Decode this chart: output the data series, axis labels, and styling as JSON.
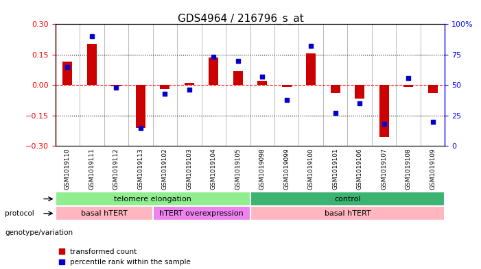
{
  "title": "GDS4964 / 216796_s_at",
  "samples": [
    "GSM1019110",
    "GSM1019111",
    "GSM1019112",
    "GSM1019113",
    "GSM1019102",
    "GSM1019103",
    "GSM1019104",
    "GSM1019105",
    "GSM1019098",
    "GSM1019099",
    "GSM1019100",
    "GSM1019101",
    "GSM1019106",
    "GSM1019107",
    "GSM1019108",
    "GSM1019109"
  ],
  "red_values": [
    0.115,
    0.205,
    -0.005,
    -0.21,
    -0.02,
    0.01,
    0.135,
    0.07,
    0.02,
    -0.01,
    0.155,
    -0.04,
    -0.065,
    -0.255,
    -0.01,
    -0.04
  ],
  "blue_values": [
    65,
    90,
    48,
    15,
    43,
    46,
    73,
    70,
    57,
    38,
    82,
    27,
    35,
    18,
    56,
    20
  ],
  "protocol_groups": [
    {
      "label": "telomere elongation",
      "start": 0,
      "end": 8,
      "color": "#90EE90"
    },
    {
      "label": "control",
      "start": 8,
      "end": 16,
      "color": "#3CB371"
    }
  ],
  "genotype_groups": [
    {
      "label": "basal hTERT",
      "start": 0,
      "end": 4,
      "color": "#FFB6C1"
    },
    {
      "label": "hTERT overexpression",
      "start": 4,
      "end": 8,
      "color": "#EE82EE"
    },
    {
      "label": "basal hTERT",
      "start": 8,
      "end": 16,
      "color": "#FFB6C1"
    }
  ],
  "ylim_left": [
    -0.3,
    0.3
  ],
  "ylim_right": [
    0,
    100
  ],
  "yticks_left": [
    -0.3,
    -0.15,
    0,
    0.15,
    0.3
  ],
  "yticks_right": [
    0,
    25,
    50,
    75,
    100
  ],
  "red_color": "#CC0000",
  "blue_color": "#0000CC",
  "legend_items": [
    "transformed count",
    "percentile rank within the sample"
  ],
  "xtick_bg": "#D3D3D3"
}
